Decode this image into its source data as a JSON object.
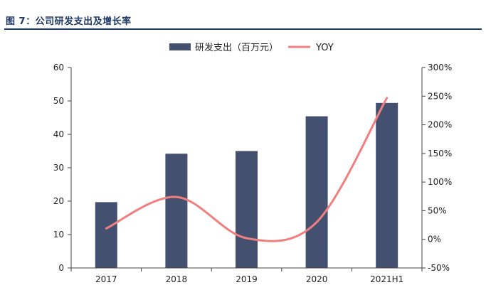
{
  "header": {
    "title": "图 7：公司研发支出及增长率"
  },
  "colors": {
    "bar": "#44506f",
    "line": "#f08080",
    "axis": "#444444",
    "title": "#1f3864"
  },
  "chart_data": {
    "type": "bar",
    "categories": [
      "2017",
      "2018",
      "2019",
      "2020",
      "2021H1"
    ],
    "series": [
      {
        "name": "研发支出（百万元）",
        "type": "bar",
        "axis": "left",
        "values": [
          19.7,
          34.2,
          35.0,
          45.4,
          49.4
        ]
      },
      {
        "name": "YOY",
        "type": "line",
        "smooth": true,
        "axis": "right",
        "values": [
          19,
          74,
          2,
          30,
          247
        ]
      }
    ],
    "y_left": {
      "ylim": [
        0,
        60
      ],
      "ticks": [
        0,
        10,
        20,
        30,
        40,
        50,
        60
      ],
      "tick_labels": [
        "0",
        "10",
        "20",
        "30",
        "40",
        "50",
        "60"
      ]
    },
    "y_right": {
      "ylim": [
        -50,
        300
      ],
      "ticks": [
        -50,
        0,
        50,
        100,
        150,
        200,
        250,
        300
      ],
      "tick_labels": [
        "-50%",
        "0%",
        "50%",
        "100%",
        "150%",
        "200%",
        "250%",
        "300%"
      ]
    },
    "legend": "top-center",
    "grid": false
  }
}
